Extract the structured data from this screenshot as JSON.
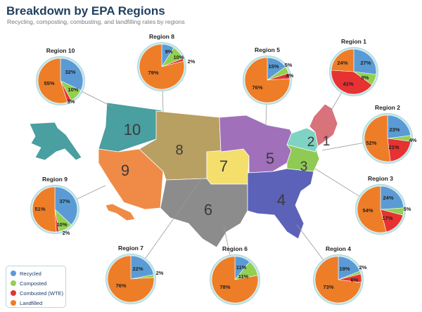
{
  "title": "Breakdown by EPA Regions",
  "subtitle": "Recycling, composting, combusting, and landfilling rates by regions",
  "colors": {
    "recycled": "#5b9bd5",
    "composted": "#92d050",
    "combusted": "#e63232",
    "landfilled": "#ee7d27"
  },
  "legend": [
    {
      "key": "recycled",
      "label": "Recycled"
    },
    {
      "key": "composted",
      "label": "Composted"
    },
    {
      "key": "combusted",
      "label": "Combusted (WTE)"
    },
    {
      "key": "landfilled",
      "label": "Landfilled"
    }
  ],
  "map": {
    "region_numbers": [
      "10",
      "8",
      "9",
      "7",
      "5",
      "1",
      "2",
      "3",
      "4",
      "6"
    ],
    "region_colors": {
      "1": "#d8727b",
      "2": "#7fd3c3",
      "3": "#8fca55",
      "4": "#5b62b8",
      "5": "#a070bb",
      "6": "#8c8c8c",
      "7": "#f4de6c",
      "8": "#b89f62",
      "9": "#ef8b47",
      "10": "#4a9fa0"
    }
  },
  "chart_data": {
    "type": "pie",
    "title": "Breakdown by EPA Regions",
    "subtitle": "Recycling, composting, combusting, and landfilling rates by regions",
    "categories": [
      "Recycled",
      "Composted",
      "Combusted (WTE)",
      "Landfilled"
    ],
    "pies": [
      {
        "name": "Region 10",
        "values": [
          32,
          10,
          3,
          55
        ],
        "labels": [
          "32%",
          "10%",
          "3%",
          "55%"
        ]
      },
      {
        "name": "Region 8",
        "values": [
          9,
          10,
          2,
          79
        ],
        "labels": [
          "9%",
          "10%",
          "2%",
          "79%"
        ]
      },
      {
        "name": "Region 5",
        "values": [
          15,
          5,
          4,
          76
        ],
        "labels": [
          "15%",
          "5%",
          "4%",
          "76%"
        ]
      },
      {
        "name": "Region 1",
        "values": [
          27,
          8,
          41,
          24
        ],
        "labels": [
          "27%",
          "8%",
          "41%",
          "24%"
        ]
      },
      {
        "name": "Region 2",
        "values": [
          23,
          4,
          21,
          52
        ],
        "labels": [
          "23%",
          "4%",
          "21%",
          "52%"
        ]
      },
      {
        "name": "Region 3",
        "values": [
          24,
          5,
          17,
          54
        ],
        "labels": [
          "24%",
          "5%",
          "17%",
          "54%"
        ]
      },
      {
        "name": "Region 9",
        "values": [
          37,
          10,
          2,
          51
        ],
        "labels": [
          "37%",
          "10%",
          "2%",
          "51%"
        ]
      },
      {
        "name": "Region 7",
        "values": [
          22,
          2,
          0,
          76
        ],
        "labels": [
          "22%",
          "2%",
          "",
          "76%"
        ]
      },
      {
        "name": "Region 6",
        "values": [
          11,
          11,
          0,
          78
        ],
        "labels": [
          "11%",
          "11%",
          "",
          "78%"
        ]
      },
      {
        "name": "Region 4",
        "values": [
          19,
          2,
          6,
          73
        ],
        "labels": [
          "19%",
          "2%",
          "6%",
          "73%"
        ]
      }
    ]
  }
}
